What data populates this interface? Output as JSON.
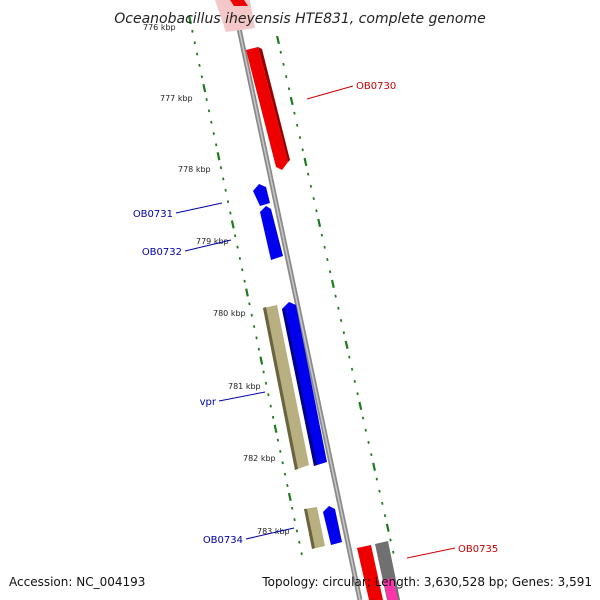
{
  "title": "Oceanobacillus iheyensis HTE831, complete genome",
  "footer": {
    "accession": "Accession: NC_004193",
    "summary": "Topology: circular; Length: 3,630,528 bp; Genes: 3,591"
  },
  "ruler_labels": [
    "776 kbp",
    "777 kbp",
    "778 kbp",
    "779 kbp",
    "780 kbp",
    "781 kbp",
    "782 kbp",
    "783 kbp"
  ],
  "genes": [
    {
      "name": "OB0730",
      "strand": "+",
      "color": "#ee0000"
    },
    {
      "name": "OB0731",
      "strand": "-",
      "color": "#0000cc"
    },
    {
      "name": "OB0732",
      "strand": "-",
      "color": "#0000cc"
    },
    {
      "name": "vpr",
      "strand": "-",
      "color": "#0000cc"
    },
    {
      "name": "OB0734",
      "strand": "-",
      "color": "#0000cc"
    },
    {
      "name": "OB0735",
      "strand": "+",
      "color": "#ee0000"
    }
  ],
  "colors": {
    "backbone": "#8a8a8a",
    "ticks": "#1f7a1f",
    "forward_gene": "#ee0000",
    "reverse_gene": "#0000ee",
    "feature_olive": "#b8b080",
    "feature_gray": "#707070",
    "feature_magenta": "#ff33aa",
    "label_forward": "#cc0000",
    "label_reverse": "#0000aa"
  }
}
